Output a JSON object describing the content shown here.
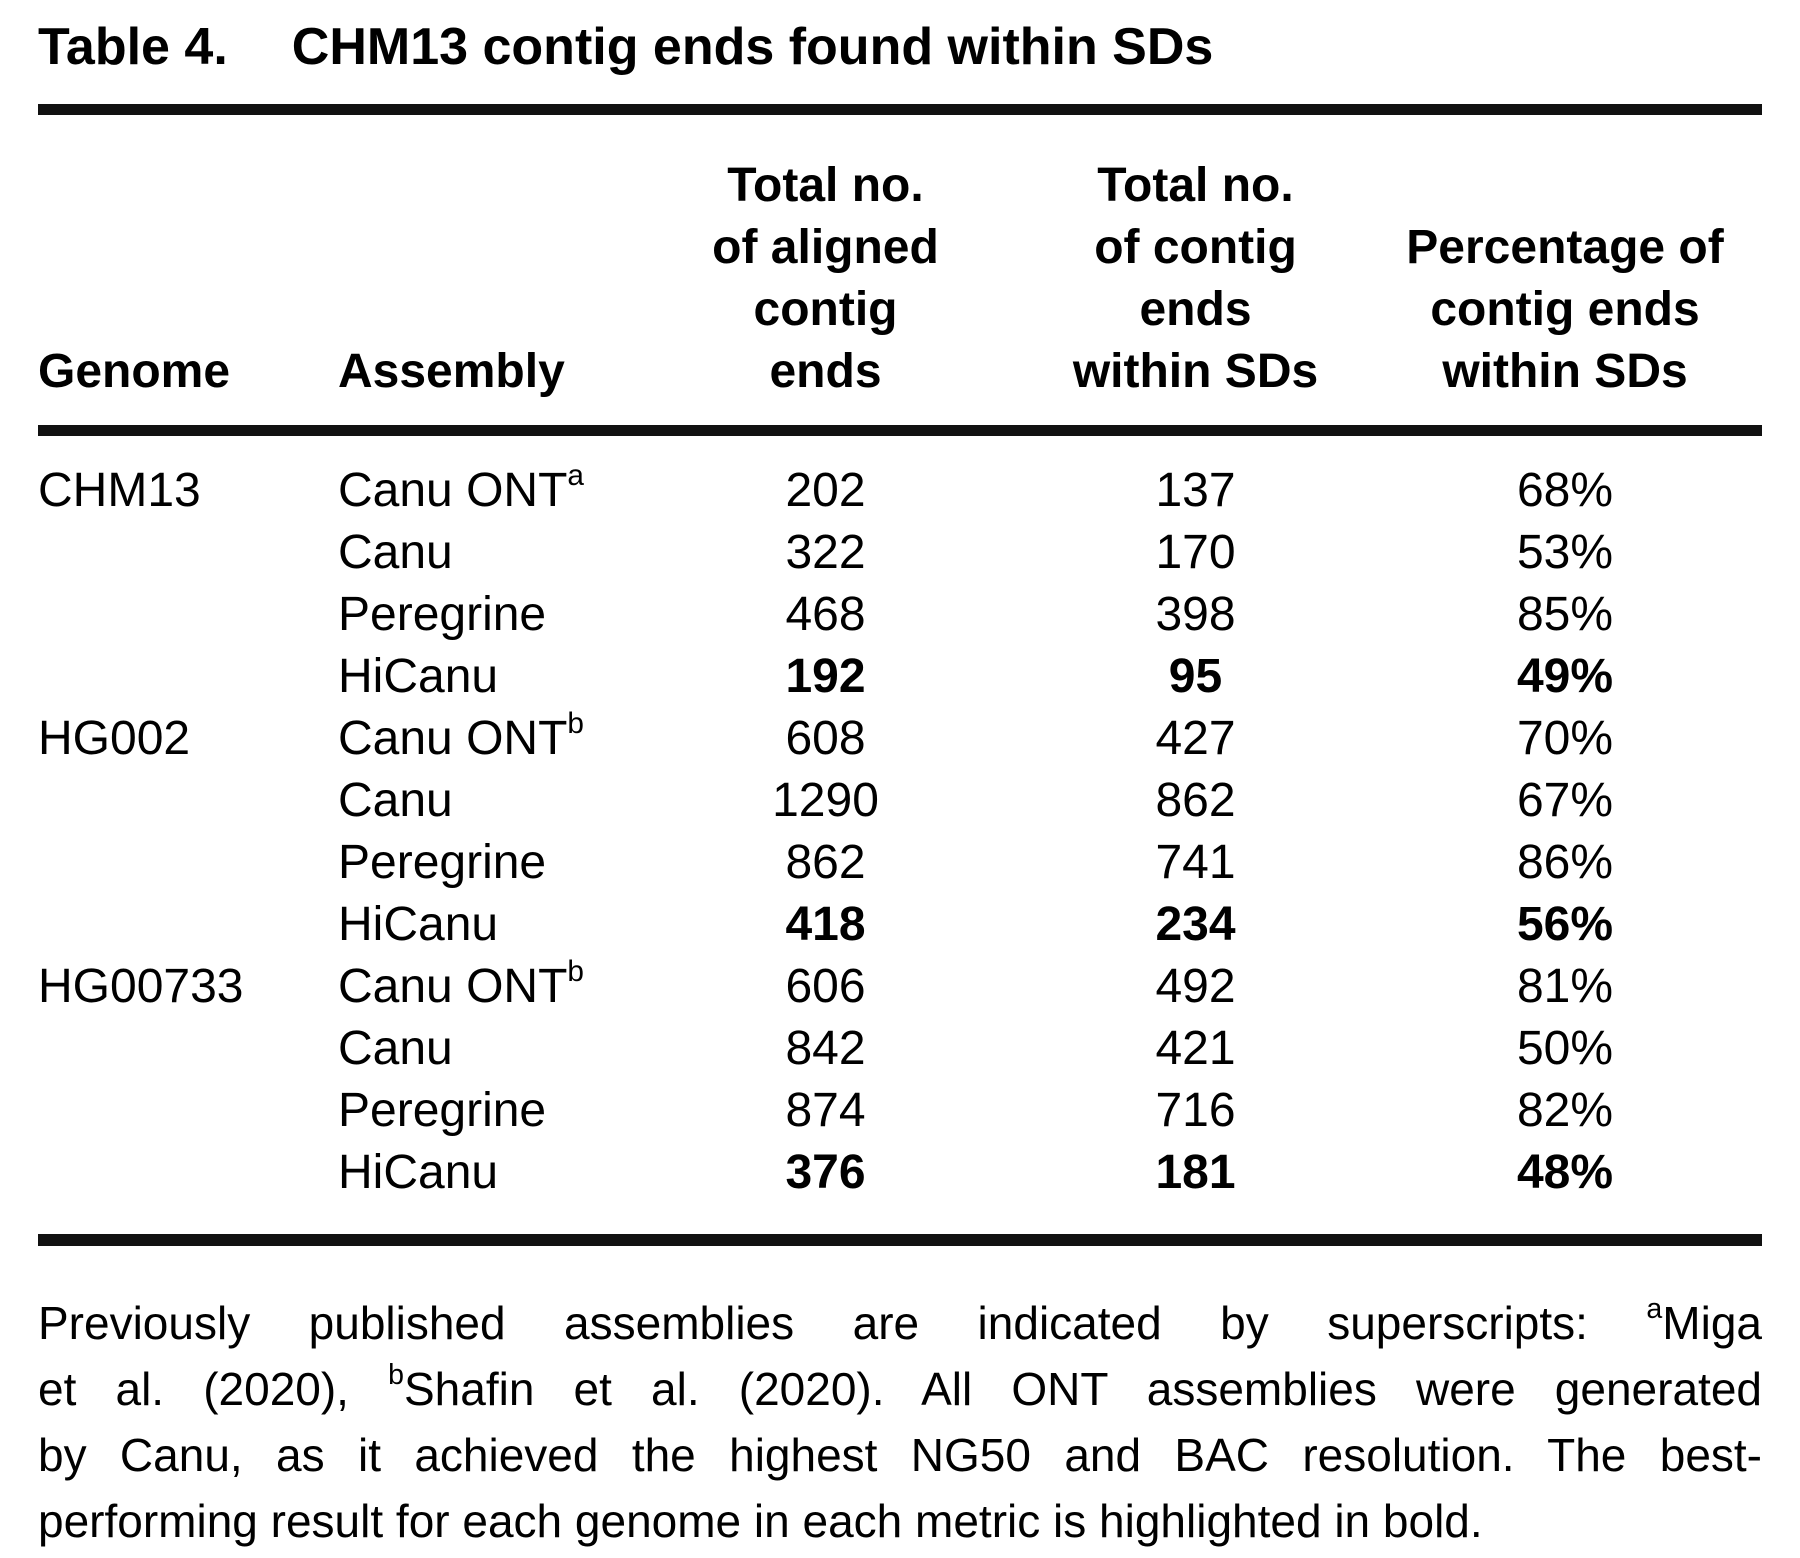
{
  "title": {
    "label": "Table 4.",
    "text": "CHM13 contig ends found within SDs"
  },
  "table": {
    "headers": {
      "genome": "Genome",
      "assembly": "Assembly",
      "aligned": "Total no.\nof aligned\ncontig\nends",
      "within": "Total no.\nof contig\nends\nwithin SDs",
      "percentage": "Percentage of\ncontig ends\nwithin SDs"
    },
    "rows": [
      {
        "genome": "CHM13",
        "assembly": "Canu ONT",
        "sup": "a",
        "aligned": "202",
        "within": "137",
        "pct": "68%",
        "bold": false
      },
      {
        "genome": "",
        "assembly": "Canu",
        "sup": "",
        "aligned": "322",
        "within": "170",
        "pct": "53%",
        "bold": false
      },
      {
        "genome": "",
        "assembly": "Peregrine",
        "sup": "",
        "aligned": "468",
        "within": "398",
        "pct": "85%",
        "bold": false
      },
      {
        "genome": "",
        "assembly": "HiCanu",
        "sup": "",
        "aligned": "192",
        "within": "95",
        "pct": "49%",
        "bold": true
      },
      {
        "genome": "HG002",
        "assembly": "Canu ONT",
        "sup": "b",
        "aligned": "608",
        "within": "427",
        "pct": "70%",
        "bold": false
      },
      {
        "genome": "",
        "assembly": "Canu",
        "sup": "",
        "aligned": "1290",
        "within": "862",
        "pct": "67%",
        "bold": false
      },
      {
        "genome": "",
        "assembly": "Peregrine",
        "sup": "",
        "aligned": "862",
        "within": "741",
        "pct": "86%",
        "bold": false
      },
      {
        "genome": "",
        "assembly": "HiCanu",
        "sup": "",
        "aligned": "418",
        "within": "234",
        "pct": "56%",
        "bold": true
      },
      {
        "genome": "HG00733",
        "assembly": "Canu ONT",
        "sup": "b",
        "aligned": "606",
        "within": "492",
        "pct": "81%",
        "bold": false
      },
      {
        "genome": "",
        "assembly": "Canu",
        "sup": "",
        "aligned": "842",
        "within": "421",
        "pct": "50%",
        "bold": false
      },
      {
        "genome": "",
        "assembly": "Peregrine",
        "sup": "",
        "aligned": "874",
        "within": "716",
        "pct": "82%",
        "bold": false
      },
      {
        "genome": "",
        "assembly": "HiCanu",
        "sup": "",
        "aligned": "376",
        "within": "181",
        "pct": "48%",
        "bold": true
      }
    ]
  },
  "footnote": {
    "lines": [
      {
        "segments": [
          {
            "text": "Previously published assemblies are indicated by superscripts: "
          },
          {
            "sup": "a"
          },
          {
            "text": "Miga"
          }
        ]
      },
      {
        "segments": [
          {
            "text": "et al. (2020), "
          },
          {
            "sup": "b"
          },
          {
            "text": "Shafin et al. (2020). All ONT assemblies were generated"
          }
        ]
      },
      {
        "segments": [
          {
            "text": "by Canu, as it achieved the highest NG50 and BAC resolution. The best-"
          }
        ]
      },
      {
        "segments": [
          {
            "text": "performing result for each genome in each metric is highlighted in bold."
          }
        ]
      }
    ]
  },
  "colors": {
    "text": "#000000",
    "background": "#ffffff",
    "rule": "#111111"
  }
}
